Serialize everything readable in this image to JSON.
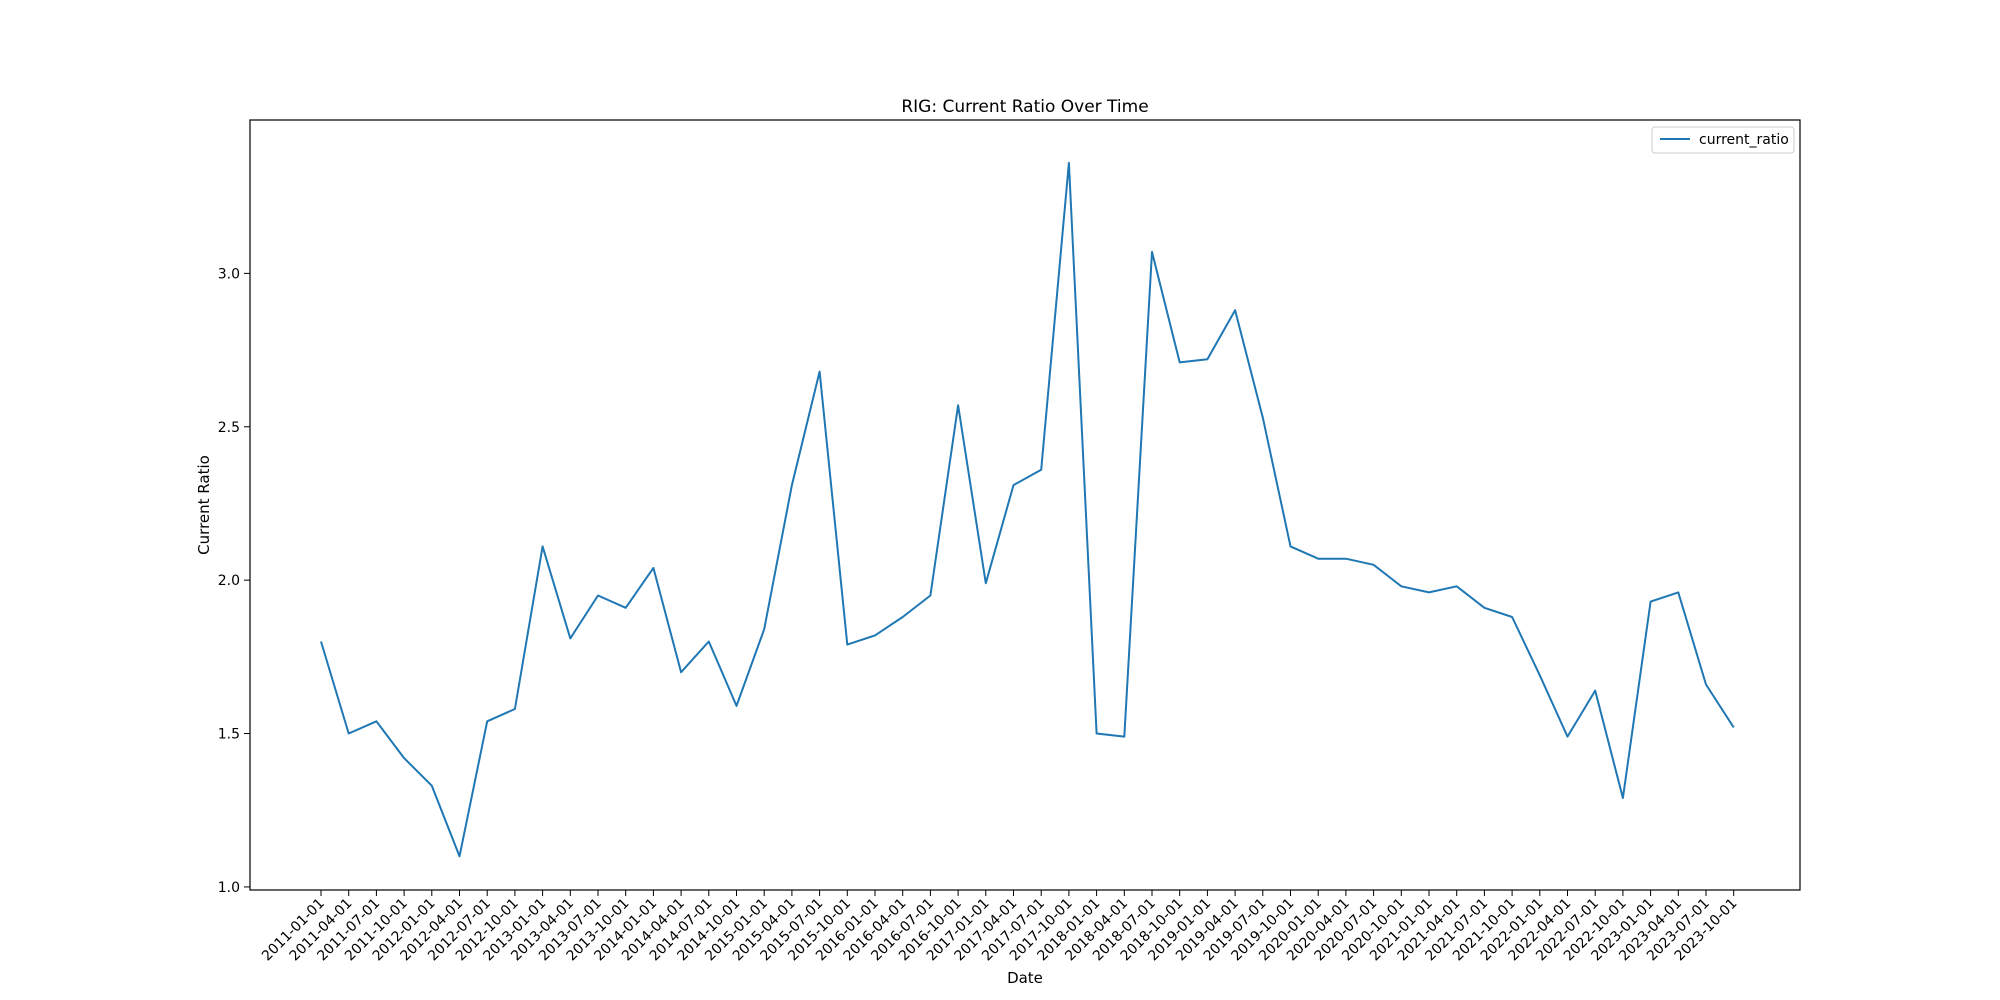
{
  "chart_data": {
    "type": "line",
    "title": "RIG: Current Ratio Over Time",
    "xlabel": "Date",
    "ylabel": "Current Ratio",
    "ylim": [
      0.99,
      3.5
    ],
    "y_ticks": [
      1.0,
      1.5,
      2.0,
      2.5,
      3.0
    ],
    "y_tick_labels": [
      "1.0",
      "1.5",
      "2.0",
      "2.5",
      "3.0"
    ],
    "grid": false,
    "legend_position": "top-right",
    "x": [
      "2011-01-01",
      "2011-04-01",
      "2011-07-01",
      "2011-10-01",
      "2012-01-01",
      "2012-04-01",
      "2012-07-01",
      "2012-10-01",
      "2013-01-01",
      "2013-04-01",
      "2013-07-01",
      "2013-10-01",
      "2014-01-01",
      "2014-04-01",
      "2014-07-01",
      "2014-10-01",
      "2015-01-01",
      "2015-04-01",
      "2015-07-01",
      "2015-10-01",
      "2016-01-01",
      "2016-04-01",
      "2016-07-01",
      "2016-10-01",
      "2017-01-01",
      "2017-04-01",
      "2017-07-01",
      "2017-10-01",
      "2018-01-01",
      "2018-04-01",
      "2018-07-01",
      "2018-10-01",
      "2019-01-01",
      "2019-04-01",
      "2019-07-01",
      "2019-10-01",
      "2020-01-01",
      "2020-04-01",
      "2020-07-01",
      "2020-10-01",
      "2021-01-01",
      "2021-04-01",
      "2021-07-01",
      "2021-10-01",
      "2022-01-01",
      "2022-04-01",
      "2022-07-01",
      "2022-10-01",
      "2023-01-01",
      "2023-04-01",
      "2023-07-01",
      "2023-10-01"
    ],
    "series": [
      {
        "name": "current_ratio",
        "color": "#1f77b4",
        "values": [
          1.8,
          1.5,
          1.54,
          1.42,
          1.33,
          1.1,
          1.54,
          1.58,
          2.11,
          1.81,
          1.95,
          1.91,
          2.04,
          1.7,
          1.8,
          1.59,
          1.84,
          2.31,
          2.68,
          1.79,
          1.82,
          1.88,
          1.95,
          2.57,
          1.99,
          2.31,
          2.36,
          3.36,
          1.5,
          1.49,
          3.07,
          2.71,
          2.72,
          2.88,
          2.53,
          2.11,
          2.07,
          2.07,
          2.05,
          1.98,
          1.96,
          1.98,
          1.91,
          1.88,
          1.69,
          1.49,
          1.64,
          1.29,
          1.93,
          1.96,
          1.66,
          1.52
        ]
      }
    ]
  }
}
